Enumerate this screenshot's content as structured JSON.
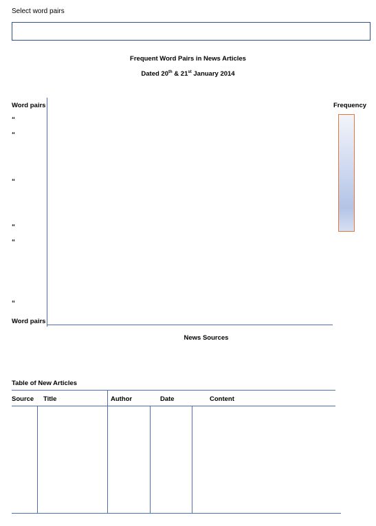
{
  "select_label": "Select word pairs",
  "select_value": "",
  "chart_title": "Frequent Word Pairs in News Articles",
  "date_line": {
    "prefix": "Dated 20",
    "sup1": "th",
    "mid": " & 21",
    "sup2": "st",
    "suffix": " January 2014"
  },
  "y_axis_label_top": "Word pairs",
  "y_axis_label_bottom": "Word pairs",
  "ditto_mark": "“",
  "legend_label": "Frequency",
  "x_axis_label": "News Sources",
  "table": {
    "title": "Table of New Articles",
    "columns": [
      "Source",
      "Title",
      "Author",
      "Date",
      "Content"
    ]
  },
  "colors": {
    "axis": "#4a6db5",
    "input_border": "#2f4f8f",
    "legend_border": "#e0783a"
  }
}
